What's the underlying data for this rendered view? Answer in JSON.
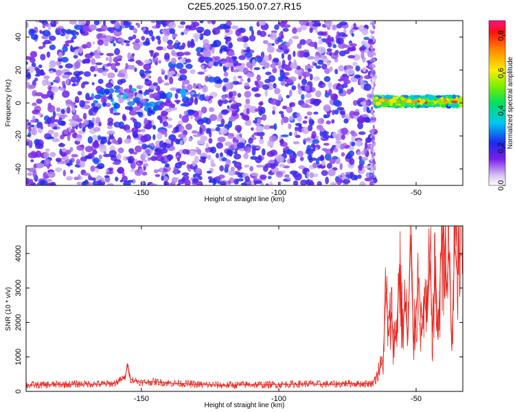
{
  "title": "C2E5.2025.150.07.27.R15",
  "colors": {
    "axis": "#000000",
    "snr_line": "#e8241c",
    "spectrogram_low": "#c9b6f0",
    "spectrogram_mid": "#7a1fe6",
    "spectrogram_high": "#1a3cf0"
  },
  "chart_data": [
    {
      "type": "heatmap",
      "xlabel": "Height of straight line (km)",
      "ylabel": "Frequency (Hz)",
      "xlim": [
        -192,
        -33
      ],
      "ylim": [
        -50,
        50
      ],
      "x_ticks": [
        -150,
        -100,
        -50
      ],
      "y_ticks": [
        -40,
        -20,
        0,
        20,
        40
      ],
      "x_tick_labels": [
        "-150",
        "-100",
        "-50"
      ],
      "y_tick_labels": [
        "-40",
        "-20",
        "0",
        "20",
        "40"
      ],
      "colorbar": {
        "label": "Normalized spectral amplitude",
        "range": [
          0.0,
          0.88
        ],
        "ticks": [
          0.0,
          0.2,
          0.4,
          0.6,
          0.8
        ],
        "tick_labels": [
          "0.0",
          "0.2",
          "0.4",
          "0.6",
          "0.8"
        ]
      },
      "noise_region_x": [
        -192,
        -65
      ],
      "signal_band": {
        "x": [
          -65,
          -33
        ],
        "frequency_center": 1,
        "frequency_halfwidth": 3,
        "peak_amplitude": 0.88
      },
      "weak_band": {
        "x": [
          -170,
          -130
        ],
        "frequency_center": 2,
        "frequency_halfwidth": 6
      }
    },
    {
      "type": "line",
      "xlabel": "Height of straight line (km)",
      "ylabel": "SNR (10 * v/v)",
      "xlim": [
        -192,
        -33
      ],
      "ylim": [
        0,
        4800
      ],
      "x_ticks": [
        -150,
        -100,
        -50
      ],
      "y_ticks": [
        0,
        1000,
        2000,
        3000,
        4000
      ],
      "x_tick_labels": [
        "-150",
        "-100",
        "-50"
      ],
      "y_tick_labels": [
        "0",
        "1000",
        "2000",
        "3000",
        "4000"
      ],
      "series": [
        {
          "x": [
            -192,
            -185,
            -180,
            -175,
            -170,
            -165,
            -160,
            -156,
            -155,
            -154,
            -150,
            -145,
            -140,
            -135,
            -130,
            -125,
            -120,
            -115,
            -110,
            -105,
            -100,
            -95,
            -90,
            -85,
            -80,
            -75,
            -70,
            -66,
            -64,
            -62,
            -61,
            -60,
            -59,
            -58,
            -57,
            -56,
            -55,
            -54,
            -53,
            -52,
            -51,
            -50,
            -49,
            -48,
            -47,
            -46,
            -45,
            -44,
            -43,
            -42,
            -41,
            -40,
            -39,
            -38,
            -37,
            -36,
            -35,
            -34,
            -33
          ],
          "values": [
            180,
            190,
            200,
            210,
            220,
            210,
            230,
            400,
            780,
            350,
            260,
            280,
            240,
            230,
            200,
            190,
            180,
            190,
            200,
            190,
            200,
            210,
            220,
            210,
            210,
            230,
            220,
            230,
            500,
            900,
            2900,
            1600,
            2300,
            1400,
            1900,
            3700,
            1800,
            2600,
            1500,
            4550,
            1400,
            2400,
            3300,
            1600,
            2700,
            2000,
            3800,
            1700,
            3600,
            1500,
            4000,
            4800,
            2900,
            4100,
            1200,
            4300,
            3400,
            4000,
            3900
          ]
        }
      ]
    }
  ]
}
